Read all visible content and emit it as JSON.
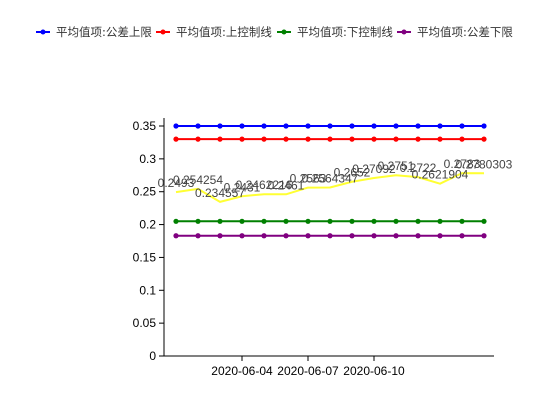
{
  "chart_data": {
    "type": "line",
    "title": "",
    "xlabel": "",
    "ylabel": "",
    "ylim": [
      0,
      0.35
    ],
    "y_ticks": [
      "0",
      "0.05",
      "0.1",
      "0.15",
      "0.2",
      "0.25",
      "0.3",
      "0.35"
    ],
    "y_tick_values": [
      0,
      0.05,
      0.1,
      0.15,
      0.2,
      0.25,
      0.3,
      0.35
    ],
    "x_tick_labels": [
      "2020-06-04",
      "2020-06-07",
      "2020-06-10"
    ],
    "x_tick_index": [
      3,
      6,
      9
    ],
    "point_count": 15,
    "grid": false,
    "legend_position": "top",
    "legend": [
      {
        "label": "平均值项:公差上限",
        "color": "#0000ff"
      },
      {
        "label": "平均值项:上控制线",
        "color": "#ff0000"
      },
      {
        "label": "平均值项:下控制线",
        "color": "#008000"
      },
      {
        "label": "平均值项:公差下限",
        "color": "#800080"
      }
    ],
    "series": [
      {
        "name": "平均值项:公差上限",
        "color": "#0000ff",
        "markers": true,
        "values": [
          0.35,
          0.35,
          0.35,
          0.35,
          0.35,
          0.35,
          0.35,
          0.35,
          0.35,
          0.35,
          0.35,
          0.35,
          0.35,
          0.35,
          0.35
        ]
      },
      {
        "name": "平均值项:上控制线",
        "color": "#ff0000",
        "markers": true,
        "values": [
          0.33,
          0.33,
          0.33,
          0.33,
          0.33,
          0.33,
          0.33,
          0.33,
          0.33,
          0.33,
          0.33,
          0.33,
          0.33,
          0.33,
          0.33
        ]
      },
      {
        "name": "平均值项:下控制线",
        "color": "#008000",
        "markers": true,
        "values": [
          0.205,
          0.205,
          0.205,
          0.205,
          0.205,
          0.205,
          0.205,
          0.205,
          0.205,
          0.205,
          0.205,
          0.205,
          0.205,
          0.205,
          0.205
        ]
      },
      {
        "name": "平均值项:公差下限",
        "color": "#800080",
        "markers": true,
        "values": [
          0.183,
          0.183,
          0.183,
          0.183,
          0.183,
          0.183,
          0.183,
          0.183,
          0.183,
          0.183,
          0.183,
          0.183,
          0.183,
          0.183,
          0.183
        ]
      },
      {
        "name": "",
        "color": "#ffff33",
        "markers": false,
        "values": [
          0.2493,
          0.254254,
          0.234557,
          0.2431,
          0.2462216,
          0.2461,
          0.2563,
          0.2564347,
          0.2652,
          0.27092,
          0.2751,
          0.2722,
          0.2621904,
          0.2783,
          0.2780303
        ],
        "labels": [
          "0.2493",
          "0.254254",
          "0.234557",
          "0.2431",
          "0.2462216",
          "0.2461",
          "0.2563",
          "0.2564347",
          "0.2652",
          "0.27092",
          "0.2751",
          "0.2722",
          "0.2621904",
          "0.2783",
          "0.2780303"
        ]
      }
    ]
  }
}
